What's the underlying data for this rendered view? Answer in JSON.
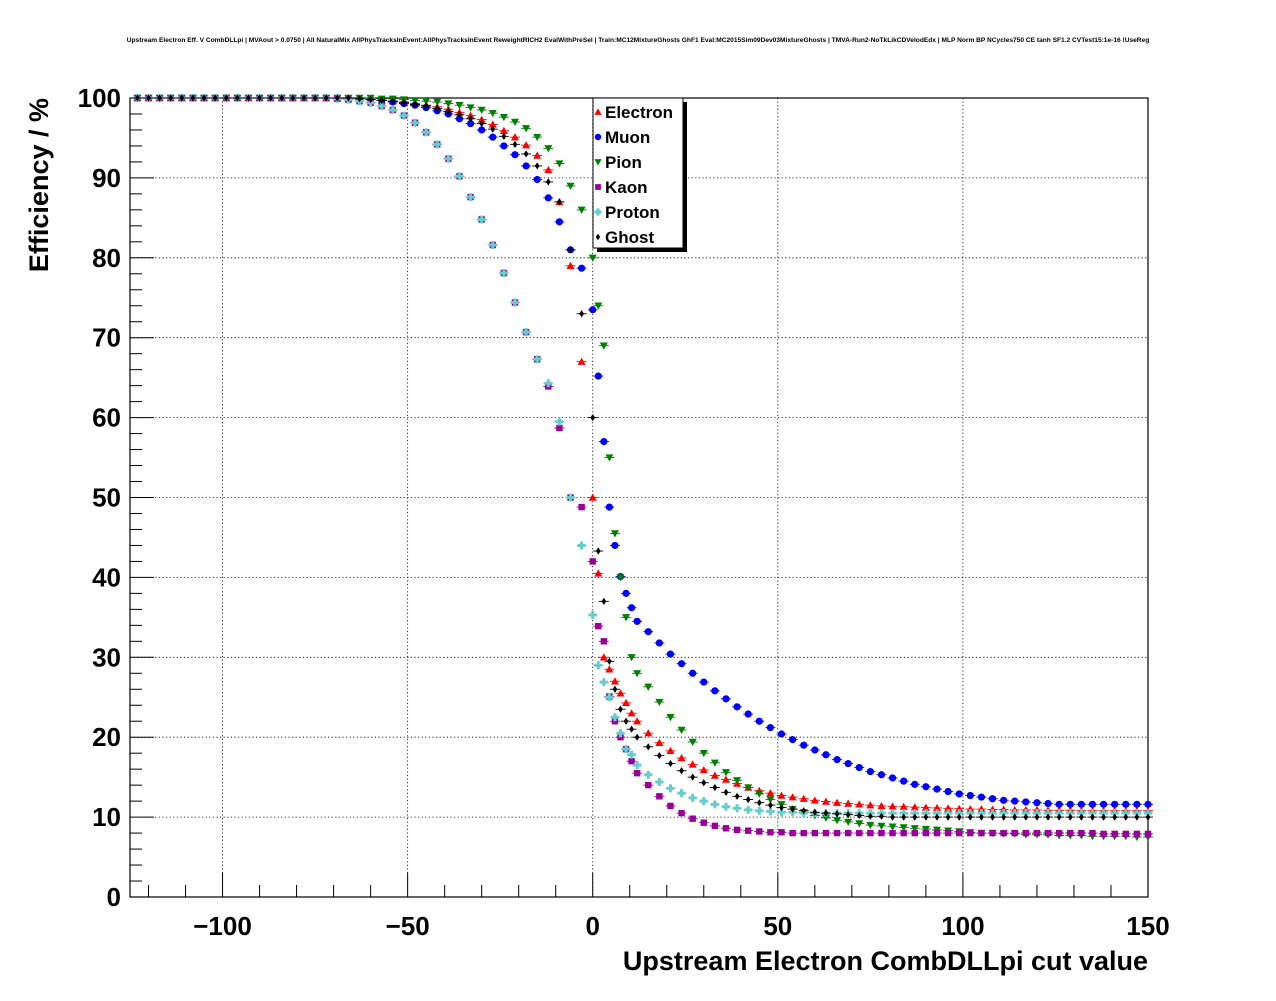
{
  "chart_data": {
    "type": "scatter",
    "title": "Upstream Electron Eff. V CombDLLpi | MVAout > 0.0750 | All NaturalMix AllPhysTracksInEvent:AllPhysTracksInEvent ReweightRICH2 EvalWithPreSel | Train:MC12MixtureGhosts GhF1 Eval:MC2015Sim09Dev03MixtureGhosts | TMVA-Run2-NoTkLikCDVelodEdx | MLP Norm BP NCycles750 CE tanh SF1.2 CVTest15:1e-16 !UseReg",
    "xlabel": "Upstream Electron CombDLLpi cut value",
    "ylabel": "Efficiency / %",
    "xlim": [
      -125,
      150
    ],
    "ylim": [
      0,
      100
    ],
    "xticks": [
      -100,
      -50,
      0,
      50,
      100,
      150
    ],
    "xtick_labels": [
      "−100",
      "−50",
      "0",
      "50",
      "100",
      "150"
    ],
    "yticks": [
      0,
      10,
      20,
      30,
      40,
      50,
      60,
      70,
      80,
      90,
      100
    ],
    "ytick_labels": [
      "0",
      "10",
      "20",
      "30",
      "40",
      "50",
      "60",
      "70",
      "80",
      "90",
      "100"
    ],
    "grid": true,
    "legend_position": "top-center",
    "x": [
      -123,
      -120,
      -117,
      -114,
      -111,
      -108,
      -105,
      -102,
      -99,
      -96,
      -93,
      -90,
      -87,
      -84,
      -81,
      -78,
      -75,
      -72,
      -69,
      -66,
      -63,
      -60,
      -57,
      -54,
      -51,
      -48,
      -45,
      -42,
      -39,
      -36,
      -33,
      -30,
      -27,
      -24,
      -21,
      -18,
      -15,
      -12,
      -9,
      -6,
      -3,
      0,
      1.5,
      3,
      4.5,
      6,
      7.5,
      9,
      10.5,
      12,
      15,
      18,
      21,
      24,
      27,
      30,
      33,
      36,
      39,
      42,
      45,
      48,
      51,
      54,
      57,
      60,
      63,
      66,
      69,
      72,
      75,
      78,
      81,
      84,
      87,
      90,
      93,
      96,
      99,
      102,
      105,
      108,
      111,
      114,
      117,
      120,
      123,
      126,
      129,
      132,
      135,
      138,
      141,
      144,
      147,
      150
    ],
    "series": [
      {
        "name": "Electron",
        "color": "#ff0000",
        "marker": "triangle-up",
        "values": [
          100,
          100,
          100,
          100,
          100,
          100,
          100,
          100,
          100,
          100,
          100,
          100,
          100,
          100,
          100,
          100,
          100,
          100,
          100,
          99.9,
          99.9,
          99.8,
          99.7,
          99.6,
          99.5,
          99.3,
          99.1,
          98.9,
          98.6,
          98.2,
          97.8,
          97.3,
          96.7,
          95.9,
          95.1,
          94.1,
          92.8,
          91.0,
          87.0,
          79.0,
          67.0,
          50.0,
          40.5,
          30.0,
          28.5,
          27.0,
          25.5,
          24.3,
          23.0,
          22.0,
          20.5,
          19.3,
          18.3,
          17.4,
          16.6,
          15.9,
          15.2,
          14.7,
          14.2,
          13.7,
          13.3,
          13.0,
          12.7,
          12.5,
          12.3,
          12.1,
          11.95,
          11.8,
          11.7,
          11.6,
          11.5,
          11.4,
          11.35,
          11.3,
          11.25,
          11.2,
          11.15,
          11.1,
          11.05,
          11.0,
          11.0,
          10.95,
          10.95,
          10.9,
          10.9,
          10.9,
          10.85,
          10.85,
          10.85,
          10.8,
          10.8,
          10.8,
          10.8,
          10.8,
          10.8,
          10.8
        ]
      },
      {
        "name": "Muon",
        "color": "#0000ff",
        "marker": "circle",
        "values": [
          100,
          100,
          100,
          100,
          100,
          100,
          100,
          100,
          100,
          100,
          100,
          100,
          100,
          100,
          100,
          100,
          100,
          100,
          100,
          99.9,
          99.9,
          99.8,
          99.7,
          99.5,
          99.3,
          99.1,
          98.8,
          98.4,
          98.0,
          97.4,
          96.8,
          96.0,
          95.1,
          94.0,
          92.9,
          91.5,
          89.8,
          87.5,
          84.5,
          81.0,
          78.7,
          73.5,
          65.2,
          57.0,
          48.8,
          44.0,
          40.1,
          38.0,
          36.2,
          34.5,
          33.2,
          31.8,
          30.4,
          29.2,
          28.0,
          26.9,
          25.8,
          24.8,
          23.8,
          22.9,
          22.0,
          21.2,
          20.4,
          19.7,
          19.0,
          18.4,
          17.8,
          17.2,
          16.7,
          16.2,
          15.7,
          15.3,
          14.9,
          14.5,
          14.1,
          13.8,
          13.5,
          13.2,
          12.9,
          12.7,
          12.5,
          12.3,
          12.1,
          12.0,
          11.9,
          11.8,
          11.7,
          11.6,
          11.6,
          11.6,
          11.6,
          11.6,
          11.6,
          11.6,
          11.6,
          11.6
        ]
      },
      {
        "name": "Pion",
        "color": "#008000",
        "marker": "triangle-down",
        "values": [
          100,
          100,
          100,
          100,
          100,
          100,
          100,
          100,
          100,
          100,
          100,
          100,
          100,
          100,
          100,
          100,
          100,
          100,
          100,
          100,
          100,
          100,
          99.9,
          99.9,
          99.8,
          99.7,
          99.6,
          99.5,
          99.3,
          99.1,
          98.8,
          98.5,
          98.1,
          97.6,
          97.0,
          96.2,
          95.1,
          93.7,
          91.8,
          89.0,
          86.0,
          80.0,
          74.0,
          69.0,
          55.0,
          45.5,
          40.0,
          35.0,
          30.0,
          28.0,
          26.3,
          24.4,
          22.5,
          20.9,
          19.4,
          18.0,
          16.8,
          15.6,
          14.6,
          13.7,
          12.9,
          12.2,
          11.6,
          11.0,
          10.6,
          10.2,
          9.9,
          9.6,
          9.4,
          9.2,
          9.0,
          8.9,
          8.8,
          8.7,
          8.6,
          8.5,
          8.4,
          8.3,
          8.2,
          8.1,
          8.0,
          8.0,
          7.9,
          7.9,
          7.8,
          7.8,
          7.8,
          7.7,
          7.7,
          7.7,
          7.6,
          7.6,
          7.6,
          7.6,
          7.5,
          7.5
        ]
      },
      {
        "name": "Kaon",
        "color": "#990099",
        "marker": "square",
        "values": [
          100,
          100,
          100,
          100,
          100,
          100,
          100,
          100,
          100,
          100,
          100,
          100,
          100,
          100,
          100,
          100,
          100,
          100,
          99.9,
          99.8,
          99.6,
          99.4,
          99.0,
          98.5,
          97.8,
          96.9,
          95.7,
          94.2,
          92.4,
          90.2,
          87.6,
          84.8,
          81.6,
          78.1,
          74.4,
          70.7,
          67.3,
          63.9,
          58.7,
          50.0,
          48.8,
          42.0,
          33.9,
          32.0,
          25.1,
          22.0,
          20.0,
          18.5,
          17.0,
          15.5,
          14.0,
          12.6,
          11.4,
          10.5,
          9.8,
          9.3,
          8.9,
          8.6,
          8.4,
          8.3,
          8.2,
          8.1,
          8.1,
          8.0,
          8.0,
          8.0,
          8.0,
          8.0,
          8.0,
          8.0,
          8.0,
          8.0,
          8.0,
          8.0,
          8.0,
          8.0,
          8.0,
          8.0,
          8.0,
          8.0,
          8.0,
          8.0,
          8.0,
          8.0,
          8.0,
          8.0,
          8.0,
          8.0,
          8.0,
          8.0,
          8.0,
          7.9,
          7.9,
          7.9,
          7.9,
          7.9
        ]
      },
      {
        "name": "Proton",
        "color": "#66cccc",
        "marker": "cross",
        "values": [
          100,
          100,
          100,
          100,
          100,
          100,
          100,
          100,
          100,
          100,
          100,
          100,
          100,
          100,
          100,
          100,
          100,
          100,
          99.9,
          99.8,
          99.6,
          99.4,
          99.0,
          98.5,
          97.8,
          96.9,
          95.7,
          94.2,
          92.4,
          90.2,
          87.6,
          84.8,
          81.6,
          78.1,
          74.4,
          70.7,
          67.3,
          64.3,
          59.5,
          50.0,
          44.0,
          35.3,
          29.0,
          26.9,
          25.0,
          22.5,
          20.5,
          18.5,
          17.8,
          16.5,
          15.3,
          14.4,
          13.6,
          13.0,
          12.4,
          12.0,
          11.6,
          11.3,
          11.1,
          10.9,
          10.8,
          10.7,
          10.6,
          10.6,
          10.5,
          10.5,
          10.5,
          10.5,
          10.5,
          10.5,
          10.5,
          10.5,
          10.5,
          10.5,
          10.5,
          10.5,
          10.5,
          10.5,
          10.5,
          10.5,
          10.5,
          10.5,
          10.5,
          10.5,
          10.5,
          10.5,
          10.5,
          10.5,
          10.5,
          10.5,
          10.5,
          10.5,
          10.5,
          10.5,
          10.5,
          10.5
        ]
      },
      {
        "name": "Ghost",
        "color": "#000000",
        "marker": "diamond",
        "values": [
          100,
          100,
          100,
          100,
          100,
          100,
          100,
          100,
          100,
          100,
          100,
          100,
          100,
          100,
          100,
          100,
          100,
          100,
          100,
          100,
          99.9,
          99.8,
          99.7,
          99.6,
          99.4,
          99.2,
          99.0,
          98.7,
          98.3,
          97.9,
          97.4,
          96.8,
          96.1,
          95.2,
          94.2,
          93.0,
          91.5,
          89.5,
          87.0,
          81.0,
          73.0,
          60.0,
          43.3,
          37.0,
          29.5,
          26.0,
          23.5,
          22.0,
          21.0,
          20.0,
          18.8,
          17.7,
          16.7,
          15.8,
          15.0,
          14.3,
          13.7,
          13.1,
          12.6,
          12.2,
          11.8,
          11.5,
          11.2,
          11.0,
          10.8,
          10.6,
          10.5,
          10.4,
          10.3,
          10.2,
          10.1,
          10.1,
          10.0,
          10.0,
          10.0,
          10.0,
          10.0,
          10.0,
          10.0,
          10.0,
          10.0,
          10.0,
          10.0,
          10.0,
          10.0,
          10.0,
          10.0,
          10.0,
          10.0,
          10.0,
          10.0,
          10.0,
          10.0,
          10.0,
          10.0,
          10.0
        ]
      }
    ]
  }
}
